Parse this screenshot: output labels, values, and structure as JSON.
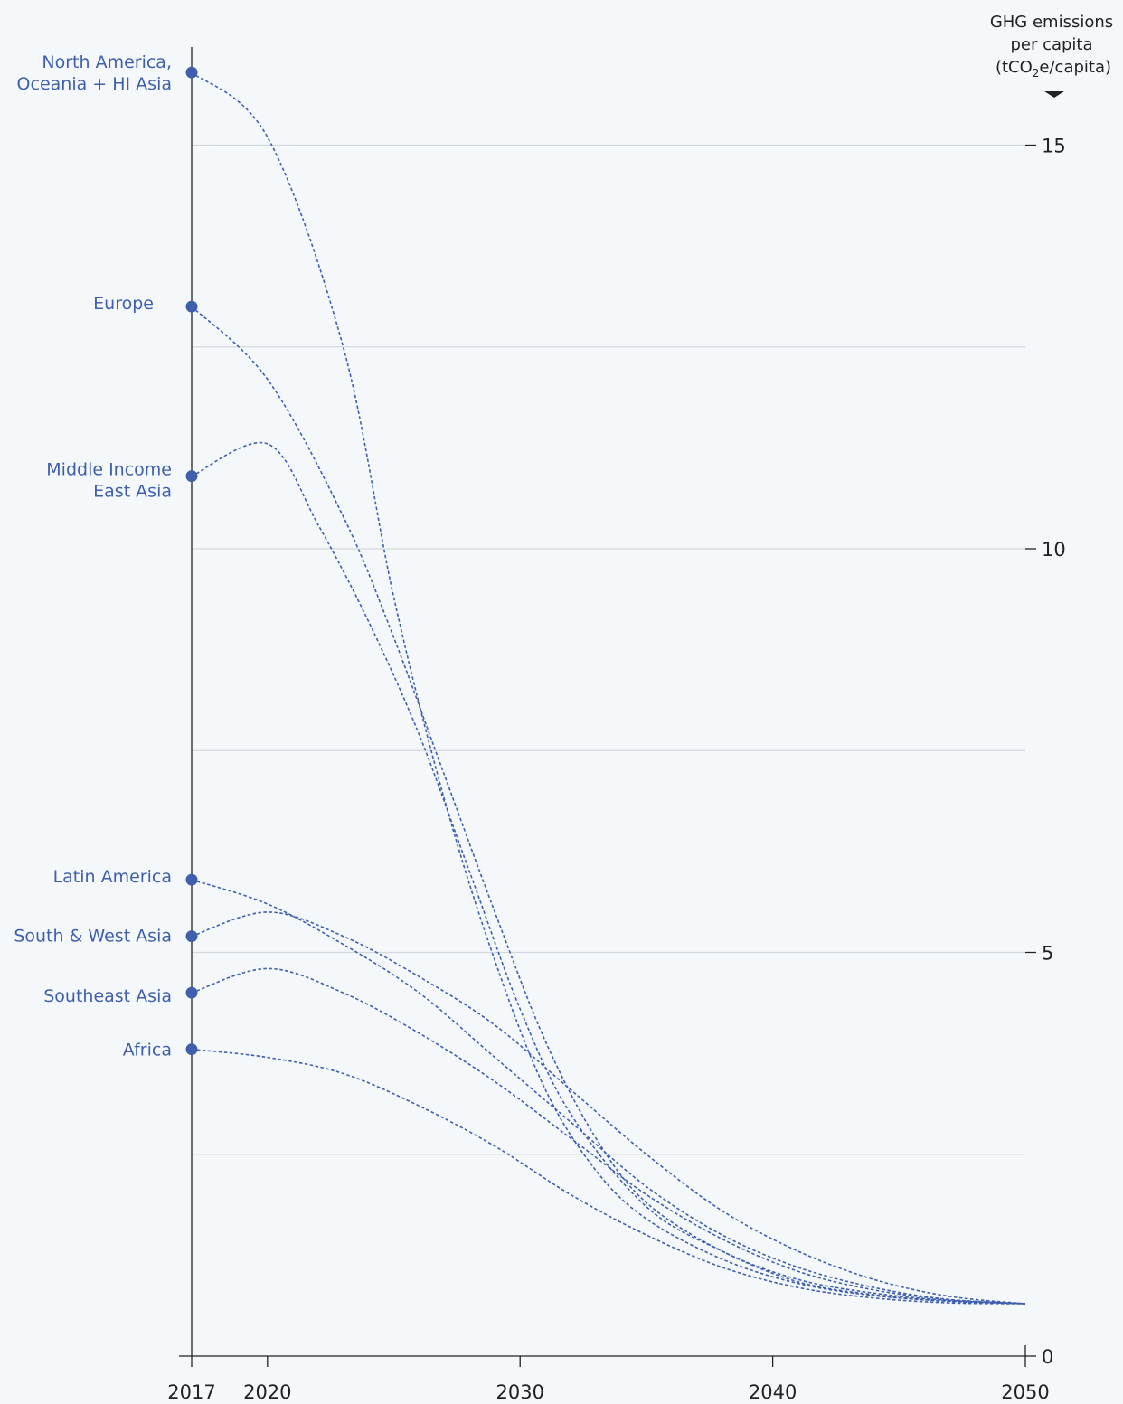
{
  "chart_data": {
    "type": "line",
    "title": "",
    "ylabel": {
      "line1": "GHG emissions",
      "line2": "per capita",
      "line3_pre": "(tCO",
      "line3_sub": "2",
      "line3_post": "e/capita)"
    },
    "xlabel": "",
    "x_ticks": [
      "2017",
      "2020",
      "2030",
      "2040",
      "2050"
    ],
    "y_ticks": [
      "0",
      "5",
      "10",
      "15"
    ],
    "ylim": [
      0,
      16.5
    ],
    "xlim": [
      2017,
      2050
    ],
    "grid": true,
    "color": "#3f5fae",
    "series": [
      {
        "name": "North America, Oceania + HI Asia",
        "label_lines": [
          "North America,",
          "Oceania + HI Asia"
        ],
        "points": [
          [
            2017,
            15.9
          ],
          [
            2020,
            15.1
          ],
          [
            2023,
            12.5
          ],
          [
            2025,
            9.4
          ],
          [
            2027,
            6.9
          ],
          [
            2029,
            4.9
          ],
          [
            2031,
            3.3
          ],
          [
            2033,
            2.3
          ],
          [
            2035,
            1.7
          ],
          [
            2038,
            1.2
          ],
          [
            2041,
            0.9
          ],
          [
            2044,
            0.75
          ],
          [
            2047,
            0.68
          ],
          [
            2050,
            0.65
          ]
        ]
      },
      {
        "name": "Europe",
        "label_lines": [
          "Europe"
        ],
        "points": [
          [
            2017,
            13.0
          ],
          [
            2020,
            12.1
          ],
          [
            2023,
            10.4
          ],
          [
            2025,
            8.9
          ],
          [
            2027,
            7.2
          ],
          [
            2029,
            5.5
          ],
          [
            2031,
            3.9
          ],
          [
            2033,
            2.7
          ],
          [
            2035,
            1.9
          ],
          [
            2038,
            1.3
          ],
          [
            2041,
            0.95
          ],
          [
            2044,
            0.78
          ],
          [
            2047,
            0.69
          ],
          [
            2050,
            0.65
          ]
        ]
      },
      {
        "name": "Middle Income East Asia",
        "label_lines": [
          "Middle Income",
          "East Asia"
        ],
        "points": [
          [
            2017,
            10.9
          ],
          [
            2020,
            11.3
          ],
          [
            2022,
            10.3
          ],
          [
            2024,
            9.1
          ],
          [
            2026,
            7.7
          ],
          [
            2028,
            6.0
          ],
          [
            2030,
            4.3
          ],
          [
            2032,
            3.0
          ],
          [
            2035,
            1.85
          ],
          [
            2038,
            1.3
          ],
          [
            2041,
            0.92
          ],
          [
            2044,
            0.76
          ],
          [
            2047,
            0.68
          ],
          [
            2050,
            0.65
          ]
        ]
      },
      {
        "name": "Latin America",
        "label_lines": [
          "Latin America"
        ],
        "points": [
          [
            2017,
            5.9
          ],
          [
            2020,
            5.6
          ],
          [
            2023,
            5.1
          ],
          [
            2026,
            4.5
          ],
          [
            2029,
            3.7
          ],
          [
            2032,
            2.9
          ],
          [
            2035,
            2.1
          ],
          [
            2038,
            1.5
          ],
          [
            2041,
            1.1
          ],
          [
            2044,
            0.85
          ],
          [
            2047,
            0.7
          ],
          [
            2050,
            0.65
          ]
        ]
      },
      {
        "name": "South & West Asia",
        "label_lines": [
          "South & West Asia"
        ],
        "points": [
          [
            2017,
            5.2
          ],
          [
            2020,
            5.5
          ],
          [
            2023,
            5.2
          ],
          [
            2026,
            4.7
          ],
          [
            2029,
            4.1
          ],
          [
            2032,
            3.3
          ],
          [
            2035,
            2.5
          ],
          [
            2038,
            1.8
          ],
          [
            2041,
            1.3
          ],
          [
            2044,
            0.95
          ],
          [
            2047,
            0.74
          ],
          [
            2050,
            0.65
          ]
        ]
      },
      {
        "name": "Southeast Asia",
        "label_lines": [
          "Southeast Asia"
        ],
        "points": [
          [
            2017,
            4.5
          ],
          [
            2020,
            4.8
          ],
          [
            2023,
            4.5
          ],
          [
            2026,
            4.0
          ],
          [
            2029,
            3.4
          ],
          [
            2032,
            2.7
          ],
          [
            2035,
            2.0
          ],
          [
            2038,
            1.45
          ],
          [
            2041,
            1.05
          ],
          [
            2044,
            0.82
          ],
          [
            2047,
            0.7
          ],
          [
            2050,
            0.65
          ]
        ]
      },
      {
        "name": "Africa",
        "label_lines": [
          "Africa"
        ],
        "points": [
          [
            2017,
            3.8
          ],
          [
            2020,
            3.7
          ],
          [
            2023,
            3.5
          ],
          [
            2026,
            3.1
          ],
          [
            2029,
            2.6
          ],
          [
            2032,
            2.0
          ],
          [
            2035,
            1.5
          ],
          [
            2038,
            1.1
          ],
          [
            2041,
            0.85
          ],
          [
            2044,
            0.72
          ],
          [
            2047,
            0.66
          ],
          [
            2050,
            0.65
          ]
        ]
      }
    ]
  }
}
